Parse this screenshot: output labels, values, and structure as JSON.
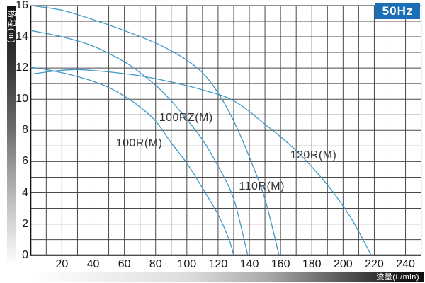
{
  "badge": {
    "frequency": "50Hz",
    "color": "#1b6fb5"
  },
  "y_axis": {
    "title": "扬程(m)",
    "ticks": [
      0,
      2,
      4,
      6,
      8,
      10,
      12,
      14,
      16
    ]
  },
  "x_axis": {
    "title": "流量(L/min)",
    "ticks": [
      20,
      40,
      60,
      80,
      100,
      120,
      140,
      160,
      180,
      200,
      220,
      240
    ]
  },
  "chart_data": {
    "type": "line",
    "title": "",
    "xlabel": "流量(L/min)",
    "ylabel": "扬程(m)",
    "xlim": [
      0,
      250
    ],
    "ylim": [
      0,
      16
    ],
    "x_minor_step": 10,
    "y_minor_step": 1,
    "grid": true,
    "legend_position": "inline-labels",
    "grid_color": "#4a4a4a",
    "axis_color": "#111111",
    "curve_color": "#4198c8",
    "series": [
      {
        "name": "100R(M)",
        "points": [
          [
            0,
            12.05
          ],
          [
            10,
            11.9
          ],
          [
            20,
            11.7
          ],
          [
            30,
            11.45
          ],
          [
            40,
            11.15
          ],
          [
            50,
            10.75
          ],
          [
            60,
            10.2
          ],
          [
            70,
            9.5
          ],
          [
            80,
            8.6
          ],
          [
            90,
            7.2
          ],
          [
            100,
            5.9
          ],
          [
            110,
            4.3
          ],
          [
            120,
            2.6
          ],
          [
            127,
            1.0
          ],
          [
            130,
            0
          ]
        ],
        "label_anchor": {
          "q": 69.5,
          "h": 7.15
        }
      },
      {
        "name": "100RZ(M)",
        "points": [
          [
            0,
            14.4
          ],
          [
            20,
            14.0
          ],
          [
            40,
            13.4
          ],
          [
            60,
            12.4
          ],
          [
            70,
            11.7
          ],
          [
            80,
            10.9
          ],
          [
            90,
            9.9
          ],
          [
            100,
            8.7
          ],
          [
            110,
            7.4
          ],
          [
            120,
            5.7
          ],
          [
            130,
            3.6
          ],
          [
            139,
            0
          ]
        ],
        "label_anchor": {
          "q": 99.5,
          "h": 8.8
        }
      },
      {
        "name": "110R(M)",
        "points": [
          [
            0,
            16
          ],
          [
            20,
            15.7
          ],
          [
            40,
            15.1
          ],
          [
            60,
            14.4
          ],
          [
            80,
            13.6
          ],
          [
            90,
            13.1
          ],
          [
            100,
            12.5
          ],
          [
            110,
            11.7
          ],
          [
            120,
            10.4
          ],
          [
            130,
            8.6
          ],
          [
            140,
            6.3
          ],
          [
            150,
            3.6
          ],
          [
            159,
            0
          ]
        ],
        "label_anchor": {
          "q": 148,
          "h": 4.4
        }
      },
      {
        "name": "120R(M)",
        "points": [
          [
            0,
            11.6
          ],
          [
            15,
            11.8
          ],
          [
            30,
            11.9
          ],
          [
            50,
            11.75
          ],
          [
            70,
            11.5
          ],
          [
            90,
            11.1
          ],
          [
            110,
            10.6
          ],
          [
            130,
            9.9
          ],
          [
            150,
            8.4
          ],
          [
            170,
            6.7
          ],
          [
            190,
            4.5
          ],
          [
            205,
            2.4
          ],
          [
            218,
            0
          ]
        ],
        "label_anchor": {
          "q": 181,
          "h": 6.4
        }
      }
    ]
  }
}
